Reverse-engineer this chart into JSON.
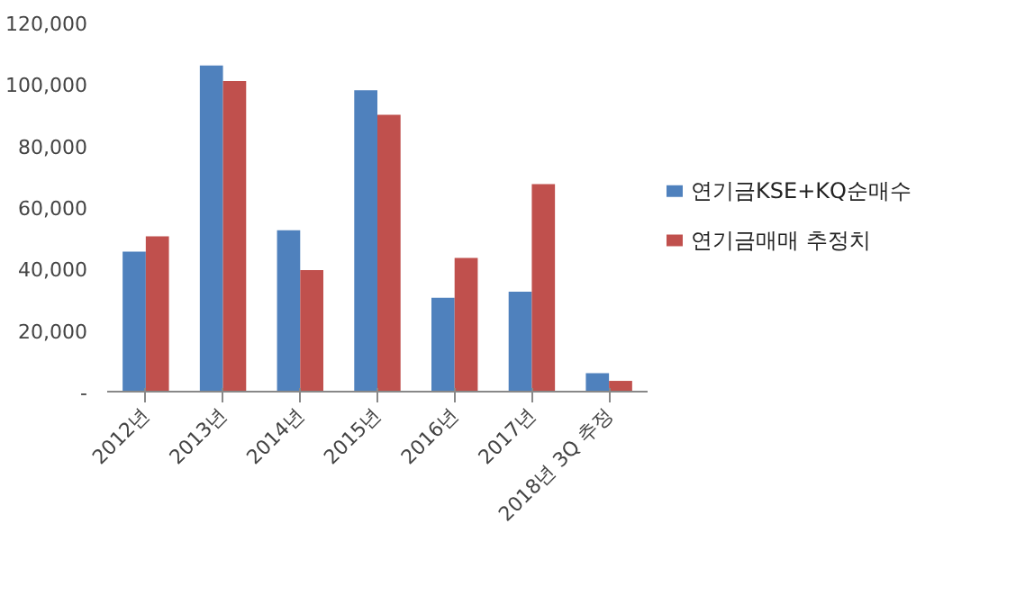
{
  "chart_data": {
    "type": "bar",
    "categories": [
      "2012년",
      "2013년",
      "2014년",
      "2015년",
      "2016년",
      "2017년",
      "2018년 3Q 추정"
    ],
    "series": [
      {
        "name": "연기금KSE+KQ순매수",
        "color": "#4f81bd",
        "values": [
          45500,
          106000,
          52500,
          98000,
          30500,
          32500,
          6000
        ]
      },
      {
        "name": "연기금매매 추정치",
        "color": "#c0504d",
        "values": [
          50500,
          101000,
          39500,
          90000,
          43500,
          67500,
          3500
        ]
      }
    ],
    "ylim": [
      0,
      120000
    ],
    "yticks": [
      {
        "value": 0,
        "label": "-"
      },
      {
        "value": 20000,
        "label": "20,000"
      },
      {
        "value": 40000,
        "label": "40,000"
      },
      {
        "value": 60000,
        "label": "60,000"
      },
      {
        "value": 80000,
        "label": "80,000"
      },
      {
        "value": 100000,
        "label": "100,000"
      },
      {
        "value": 120000,
        "label": "120,000"
      }
    ],
    "legend": "right"
  }
}
